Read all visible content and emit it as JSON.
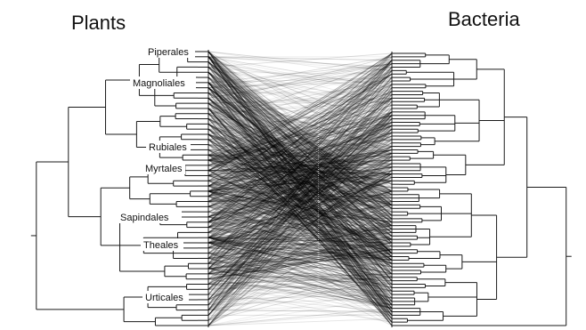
{
  "titles": {
    "left": "Plants",
    "right": "Bacteria"
  },
  "clade_labels": [
    "Piperales",
    "Magnoliales",
    "Rubiales",
    "Myrtales",
    "Sapindales",
    "Theales",
    "Urticales"
  ],
  "colors": {
    "tree": "#1a1a1a",
    "links": "#000000",
    "background": "#ffffff"
  }
}
